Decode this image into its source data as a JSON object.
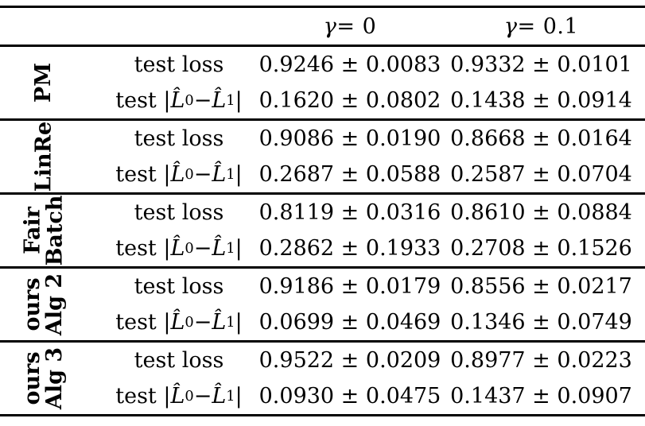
{
  "header": {
    "gamma_symbol": "γ",
    "col_gamma0_rest": " = 0",
    "col_gamma01_rest": " = 0.1"
  },
  "metrics": {
    "loss_label": "test loss",
    "gap_prefix": "test |",
    "gap_L": "L̂",
    "gap_sub0": "0",
    "gap_minus": " − ",
    "gap_sub1": "1",
    "gap_suffix": "|"
  },
  "groups": [
    {
      "label_line1": "PM",
      "label_line2": "",
      "loss_g0": "0.9246 ± 0.0083",
      "loss_g1": "0.9332 ± 0.0101",
      "gap_g0": "0.1620 ± 0.0802",
      "gap_g1": "0.1438 ± 0.0914"
    },
    {
      "label_line1": "LinRe",
      "label_line2": "",
      "loss_g0": "0.9086 ± 0.0190",
      "loss_g1": "0.8668 ± 0.0164",
      "gap_g0": "0.2687 ± 0.0588",
      "gap_g1": "0.2587 ± 0.0704"
    },
    {
      "label_line1": "Fair",
      "label_line2": "Batch",
      "loss_g0": "0.8119 ± 0.0316",
      "loss_g1": "0.8610 ± 0.0884",
      "gap_g0": "0.2862 ± 0.1933",
      "gap_g1": "0.2708 ± 0.1526"
    },
    {
      "label_line1": "ours",
      "label_line2": "Alg 2",
      "loss_g0": "0.9186 ± 0.0179",
      "loss_g1": "0.8556 ± 0.0217",
      "gap_g0": "0.0699 ± 0.0469",
      "gap_g1": "0.1346 ± 0.0749"
    },
    {
      "label_line1": "ours",
      "label_line2": "Alg 3",
      "loss_g0": "0.9522 ± 0.0209",
      "loss_g1": "0.8977 ± 0.0223",
      "gap_g0": "0.0930 ± 0.0475",
      "gap_g1": "0.1437 ± 0.0907"
    }
  ]
}
